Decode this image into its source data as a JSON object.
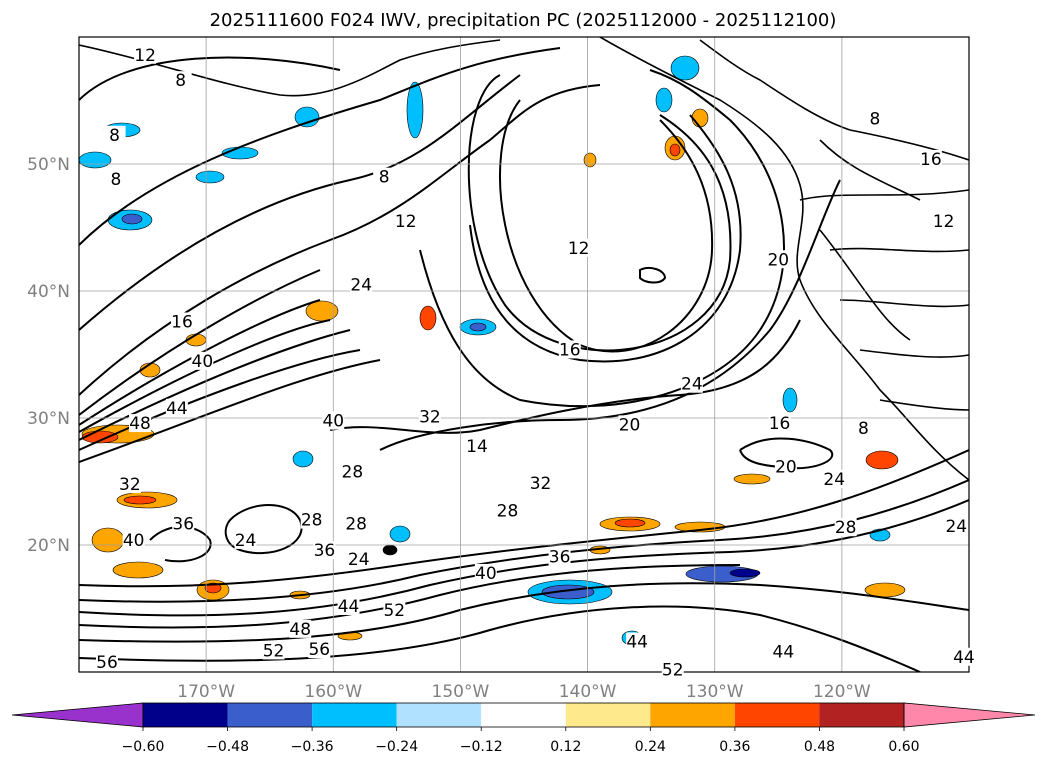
{
  "chart_data": {
    "type": "contour",
    "title": "2025111600 F024 IWV, precipitation PC (2025112000 - 2025112100)",
    "xlim": [
      -180,
      -110
    ],
    "ylim": [
      10,
      60
    ],
    "x_ticks": [
      {
        "value": -170,
        "label": "170°W"
      },
      {
        "value": -160,
        "label": "160°W"
      },
      {
        "value": -150,
        "label": "150°W"
      },
      {
        "value": -140,
        "label": "140°W"
      },
      {
        "value": -130,
        "label": "130°W"
      },
      {
        "value": -120,
        "label": "120°W"
      }
    ],
    "y_ticks": [
      {
        "value": 20,
        "label": "20°N"
      },
      {
        "value": 30,
        "label": "30°N"
      },
      {
        "value": 40,
        "label": "40°N"
      },
      {
        "value": 50,
        "label": "50°N"
      }
    ],
    "grid": true,
    "colorbar": {
      "orientation": "horizontal",
      "extend": "both",
      "levels": [
        -0.72,
        -0.6,
        -0.48,
        -0.36,
        -0.24,
        -0.12,
        0.12,
        0.24,
        0.36,
        0.48,
        0.6,
        0.72
      ],
      "colors": [
        "#9932cc",
        "#00008b",
        "#3a5fcd",
        "#00bfff",
        "#b0e2ff",
        "#ffffff",
        "#fee98d",
        "#ffa500",
        "#ff4500",
        "#b22222",
        "#ff88aa"
      ],
      "tick_labels": [
        "−0.60",
        "−0.48",
        "−0.36",
        "−0.24",
        "−0.12",
        "0.12",
        "0.24",
        "0.36",
        "0.48",
        "0.60"
      ]
    },
    "contour_labels": [
      {
        "text": "12",
        "lon": -174.8,
        "lat": 58.6
      },
      {
        "text": "8",
        "lon": -172.0,
        "lat": 56.6
      },
      {
        "text": "8",
        "lon": -177.2,
        "lat": 52.3
      },
      {
        "text": "8",
        "lon": -177.1,
        "lat": 48.8
      },
      {
        "text": "8",
        "lon": -156.0,
        "lat": 49.0
      },
      {
        "text": "12",
        "lon": -154.3,
        "lat": 45.5
      },
      {
        "text": "24",
        "lon": -157.8,
        "lat": 40.5
      },
      {
        "text": "16",
        "lon": -171.9,
        "lat": 37.6
      },
      {
        "text": "40",
        "lon": -170.3,
        "lat": 34.5
      },
      {
        "text": "44",
        "lon": -172.3,
        "lat": 30.8
      },
      {
        "text": "48",
        "lon": -175.2,
        "lat": 29.6
      },
      {
        "text": "40",
        "lon": -160.0,
        "lat": 29.8
      },
      {
        "text": "28",
        "lon": -158.5,
        "lat": 25.8
      },
      {
        "text": "32",
        "lon": -176.0,
        "lat": 24.8
      },
      {
        "text": "36",
        "lon": -171.8,
        "lat": 21.7
      },
      {
        "text": "40",
        "lon": -175.7,
        "lat": 20.4
      },
      {
        "text": "24",
        "lon": -166.9,
        "lat": 20.4
      },
      {
        "text": "28",
        "lon": -161.7,
        "lat": 22.0
      },
      {
        "text": "28",
        "lon": -158.2,
        "lat": 21.7
      },
      {
        "text": "36",
        "lon": -160.7,
        "lat": 19.6
      },
      {
        "text": "24",
        "lon": -158.0,
        "lat": 18.9
      },
      {
        "text": "44",
        "lon": -158.8,
        "lat": 15.2
      },
      {
        "text": "48",
        "lon": -162.6,
        "lat": 13.4
      },
      {
        "text": "52",
        "lon": -164.7,
        "lat": 11.7
      },
      {
        "text": "56",
        "lon": -177.8,
        "lat": 10.8
      },
      {
        "text": "56",
        "lon": -161.1,
        "lat": 11.8
      },
      {
        "text": "32",
        "lon": -152.4,
        "lat": 30.1
      },
      {
        "text": "14",
        "lon": -148.7,
        "lat": 27.8
      },
      {
        "text": "32",
        "lon": -143.7,
        "lat": 24.9
      },
      {
        "text": "28",
        "lon": -146.3,
        "lat": 22.7
      },
      {
        "text": "40",
        "lon": -148.0,
        "lat": 17.8
      },
      {
        "text": "52",
        "lon": -155.2,
        "lat": 14.9
      },
      {
        "text": "36",
        "lon": -142.2,
        "lat": 19.1
      },
      {
        "text": "44",
        "lon": -136.1,
        "lat": 12.4
      },
      {
        "text": "52",
        "lon": -133.3,
        "lat": 10.2
      },
      {
        "text": "12",
        "lon": -140.7,
        "lat": 43.4
      },
      {
        "text": "16",
        "lon": -141.4,
        "lat": 35.4
      },
      {
        "text": "24",
        "lon": -131.8,
        "lat": 32.7
      },
      {
        "text": "20",
        "lon": -136.7,
        "lat": 29.5
      },
      {
        "text": "20",
        "lon": -125.0,
        "lat": 42.5
      },
      {
        "text": "16",
        "lon": -124.9,
        "lat": 29.6
      },
      {
        "text": "20",
        "lon": -124.4,
        "lat": 26.2
      },
      {
        "text": "24",
        "lon": -120.6,
        "lat": 25.2
      },
      {
        "text": "28",
        "lon": -119.7,
        "lat": 21.4
      },
      {
        "text": "44",
        "lon": -124.6,
        "lat": 11.6
      },
      {
        "text": "8",
        "lon": -117.4,
        "lat": 53.6
      },
      {
        "text": "16",
        "lon": -113.0,
        "lat": 50.4
      },
      {
        "text": "12",
        "lon": -112.0,
        "lat": 45.5
      },
      {
        "text": "24",
        "lon": -111.0,
        "lat": 21.5
      },
      {
        "text": "44",
        "lon": -110.4,
        "lat": 11.2
      },
      {
        "text": "8",
        "lon": -118.3,
        "lat": 29.2
      }
    ]
  }
}
